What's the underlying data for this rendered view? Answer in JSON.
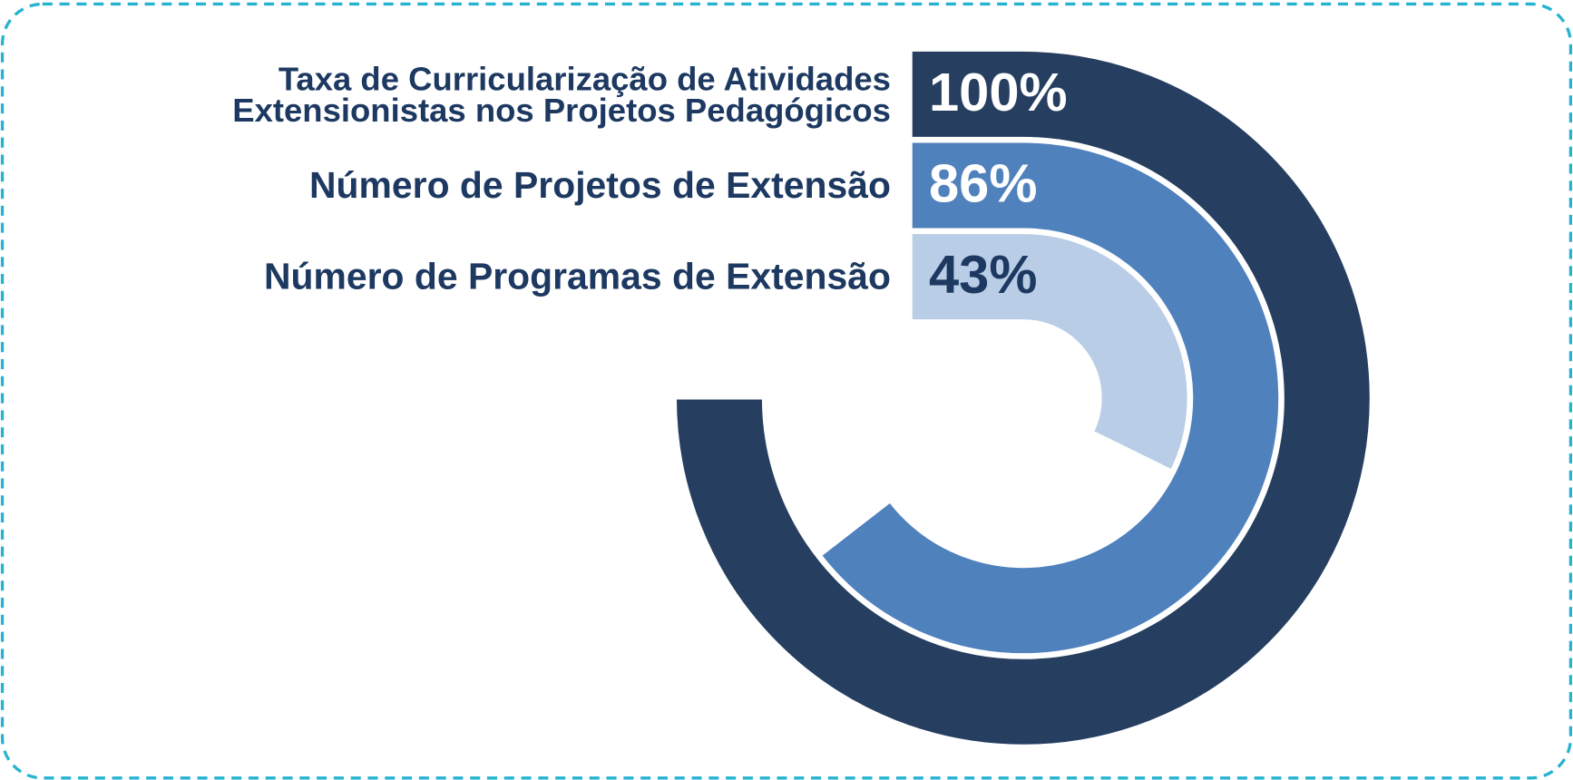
{
  "chart_data": {
    "type": "radial_bar",
    "categories": [
      "Taxa de Curricularização de Atividades\nExtensionistas nos Projetos Pedagógicos",
      "Número de Projetos de Extensão",
      "Número de Programas de Extensão"
    ],
    "values": [
      100,
      86,
      43
    ],
    "value_labels": [
      "100%",
      "86%",
      "43%"
    ],
    "colors": [
      "#263f60",
      "#4f81bd",
      "#b9cde6"
    ],
    "ylim": [
      0,
      100
    ]
  }
}
